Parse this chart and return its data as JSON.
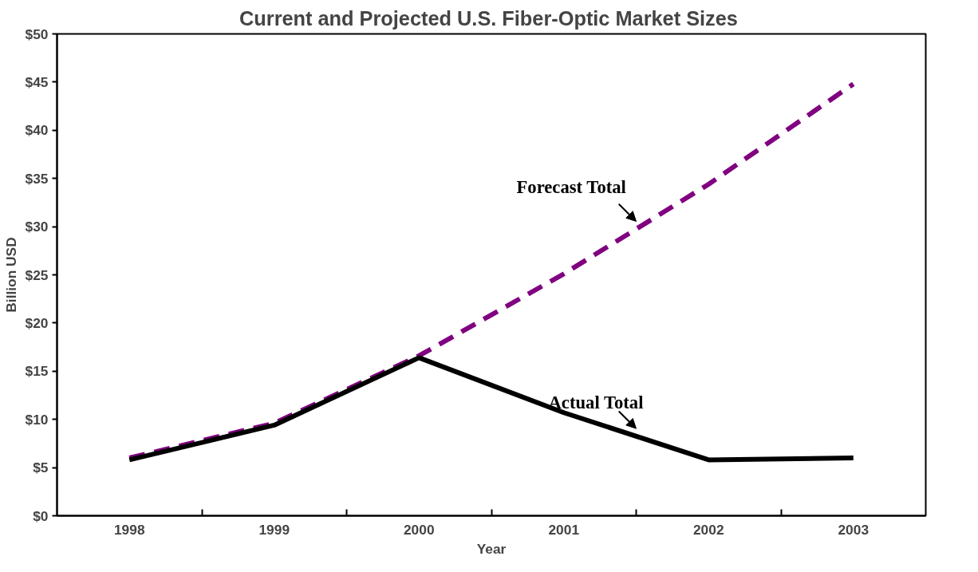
{
  "chart_data": {
    "type": "line",
    "title": "Current and  Projected U.S. Fiber-Optic Market Sizes",
    "xlabel": "Year",
    "ylabel": "Billion USD",
    "categories": [
      "1998",
      "1999",
      "2000",
      "2001",
      "2002",
      "2003"
    ],
    "series": [
      {
        "name": "Forecast Total",
        "color": "#800080",
        "line_style": "dashed",
        "values": [
          6.0,
          9.6,
          16.6,
          25.1,
          34.4,
          44.8
        ]
      },
      {
        "name": "Actual Total",
        "color": "#000000",
        "line_style": "solid",
        "values": [
          5.8,
          9.4,
          16.4,
          10.7,
          5.8,
          6.0
        ]
      }
    ],
    "ylim": [
      0,
      50
    ],
    "yticks": [
      {
        "value": 0,
        "label": "$0"
      },
      {
        "value": 5,
        "label": "$5"
      },
      {
        "value": 10,
        "label": "$10"
      },
      {
        "value": 15,
        "label": "$15"
      },
      {
        "value": 20,
        "label": "$20"
      },
      {
        "value": 25,
        "label": "$25"
      },
      {
        "value": 30,
        "label": "$30"
      },
      {
        "value": 35,
        "label": "$35"
      },
      {
        "value": 40,
        "label": "$40"
      },
      {
        "value": 45,
        "label": "$45"
      },
      {
        "value": 50,
        "label": "$50"
      }
    ],
    "grid": false,
    "marker": "none"
  }
}
